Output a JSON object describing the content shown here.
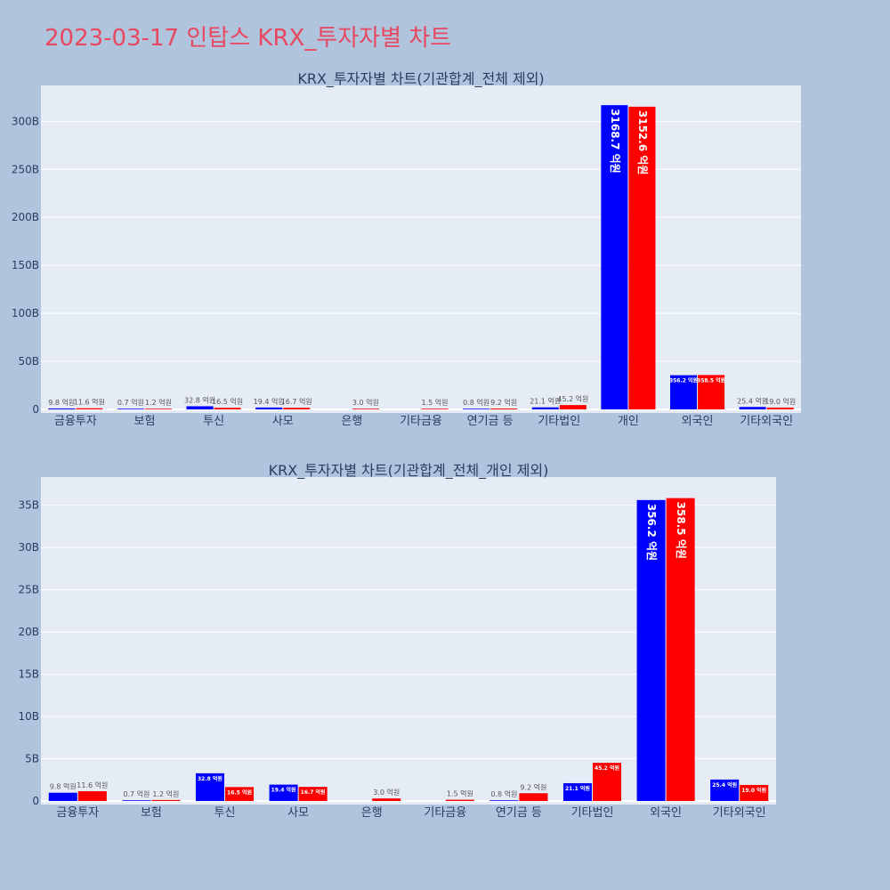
{
  "page": {
    "title": "2023-03-17 인탑스 KRX_투자자별 차트"
  },
  "colors": {
    "background": "#b0c4de",
    "plot_bg": "#e5ecf6",
    "series_1": "#0000ff",
    "series_2": "#ff0000",
    "title": "#e8485f"
  },
  "chart_data": [
    {
      "type": "bar",
      "title": "KRX_투자자별 차트(기관합계_전체 제외)",
      "categories": [
        "금융투자",
        "보험",
        "투신",
        "사모",
        "은행",
        "기타금융",
        "연기금 등",
        "기타법인",
        "개인",
        "외국인",
        "기타외국인"
      ],
      "series": [
        {
          "values": [
            0.98,
            0.07,
            3.28,
            1.94,
            0,
            0,
            0.08,
            2.11,
            316.87,
            35.62,
            2.54
          ],
          "labels": [
            "9.8 억원",
            "0.7 억원",
            "32.8 억원",
            "19.4 억원",
            "",
            "",
            "0.8 억원",
            "21.1 억원",
            "3168.7 억원",
            "356.2 억원",
            "25.4 억원"
          ]
        },
        {
          "values": [
            1.16,
            0.12,
            1.65,
            1.67,
            0.3,
            0.15,
            0.92,
            4.52,
            315.26,
            35.85,
            1.9
          ],
          "labels": [
            "11.6 억원",
            "1.2 억원",
            "16.5 억원",
            "16.7 억원",
            "3.0 억원",
            "1.5 억원",
            "9.2 억원",
            "45.2 억원",
            "3152.6 억원",
            "358.5 억원",
            "19.0 억원"
          ]
        }
      ],
      "yticks": [
        "0",
        "50B",
        "100B",
        "150B",
        "200B",
        "250B",
        "300B"
      ],
      "ytick_values": [
        0,
        50,
        100,
        150,
        200,
        250,
        300
      ],
      "ylim": [
        0,
        330
      ],
      "grid": true,
      "xlabel": "",
      "ylabel": ""
    },
    {
      "type": "bar",
      "title": "KRX_투자자별 차트(기관합계_전체_개인 제외)",
      "categories": [
        "금융투자",
        "보험",
        "투신",
        "사모",
        "은행",
        "기타금융",
        "연기금 등",
        "기타법인",
        "외국인",
        "기타외국인"
      ],
      "series": [
        {
          "values": [
            0.98,
            0.07,
            3.28,
            1.94,
            0,
            0,
            0.08,
            2.11,
            35.62,
            2.54
          ],
          "labels": [
            "9.8 억원",
            "0.7 억원",
            "32.8 억원",
            "19.4 억원",
            "",
            "",
            "0.8 억원",
            "21.1 억원",
            "356.2 억원",
            "25.4 억원"
          ]
        },
        {
          "values": [
            1.16,
            0.12,
            1.65,
            1.67,
            0.3,
            0.15,
            0.92,
            4.52,
            35.85,
            1.9
          ],
          "labels": [
            "11.6 억원",
            "1.2 억원",
            "16.5 억원",
            "16.7 억원",
            "3.0 억원",
            "1.5 억원",
            "9.2 억원",
            "45.2 억원",
            "358.5 억원",
            "19.0 억원"
          ]
        }
      ],
      "yticks": [
        "0",
        "5B",
        "10B",
        "15B",
        "20B",
        "25B",
        "30B",
        "35B"
      ],
      "ytick_values": [
        0,
        5,
        10,
        15,
        20,
        25,
        30,
        35
      ],
      "ylim": [
        0,
        37.5
      ],
      "grid": true,
      "xlabel": "",
      "ylabel": ""
    }
  ]
}
